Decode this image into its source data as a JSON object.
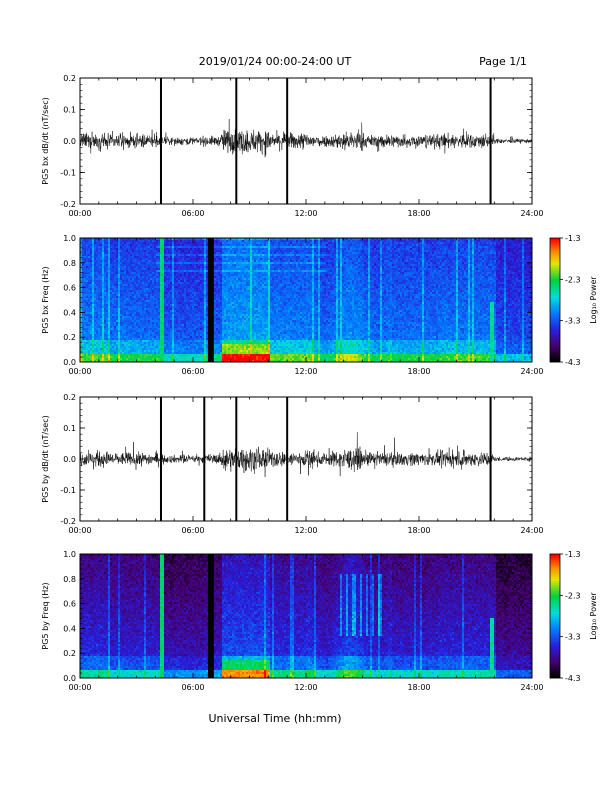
{
  "header": {
    "title": "2019/01/24  00:00-24:00 UT",
    "page": "Page 1/1"
  },
  "xlabel": "Universal Time (hh:mm)",
  "colorbar": {
    "label": "Log₁₀ Power",
    "ticks": [
      "-1.3",
      "-2.3",
      "-3.3",
      "-4.3"
    ],
    "range": [
      -4.3,
      -1.3
    ]
  },
  "chart_data": [
    {
      "type": "line",
      "ylabel": "PG5 bx dB/dt (nT/sec)",
      "xlim": [
        0,
        24
      ],
      "ylim": [
        -0.2,
        0.2
      ],
      "x_tick_labels": [
        "00:00",
        "06:00",
        "12:00",
        "18:00",
        "24:00"
      ],
      "y_tick_labels": [
        "0.2",
        "0.1",
        "0.0",
        "-0.1",
        "-0.2"
      ],
      "series": [
        {
          "x_range_hours": [
            0,
            24
          ],
          "baseline": 0.0,
          "typical_amplitude": 0.05,
          "spikes_hours": [
            4.3,
            8.3,
            11.0,
            21.8
          ]
        }
      ]
    },
    {
      "type": "heatmap",
      "ylabel": "PG5 bx Freq (Hz)",
      "xlim": [
        0,
        24
      ],
      "ylim": [
        0.0,
        1.0
      ],
      "x_tick_labels": [
        "00:00",
        "06:00",
        "12:00",
        "18:00",
        "24:00"
      ],
      "y_tick_labels": [
        "1.0",
        "0.8",
        "0.6",
        "0.4",
        "0.2",
        "0.0"
      ],
      "data_gaps_hours": [
        6.9,
        7.0
      ]
    },
    {
      "type": "line",
      "ylabel": "PG5 by dB/dt (nT/sec)",
      "xlim": [
        0,
        24
      ],
      "ylim": [
        -0.2,
        0.2
      ],
      "x_tick_labels": [
        "00:00",
        "06:00",
        "12:00",
        "18:00",
        "24:00"
      ],
      "y_tick_labels": [
        "0.2",
        "0.1",
        "0.0",
        "-0.1",
        "-0.2"
      ],
      "series": [
        {
          "x_range_hours": [
            0,
            24
          ],
          "baseline": 0.0,
          "typical_amplitude": 0.05,
          "spikes_hours": [
            4.3,
            6.6,
            8.3,
            11.0,
            21.8
          ]
        }
      ]
    },
    {
      "type": "heatmap",
      "ylabel": "PG5 by Freq (Hz)",
      "xlim": [
        0,
        24
      ],
      "ylim": [
        0.0,
        1.0
      ],
      "x_tick_labels": [
        "00:00",
        "06:00",
        "12:00",
        "18:00",
        "24:00"
      ],
      "y_tick_labels": [
        "1.0",
        "0.8",
        "0.6",
        "0.4",
        "0.2",
        "0.0"
      ],
      "data_gaps_hours": [
        6.9,
        7.0
      ]
    }
  ]
}
